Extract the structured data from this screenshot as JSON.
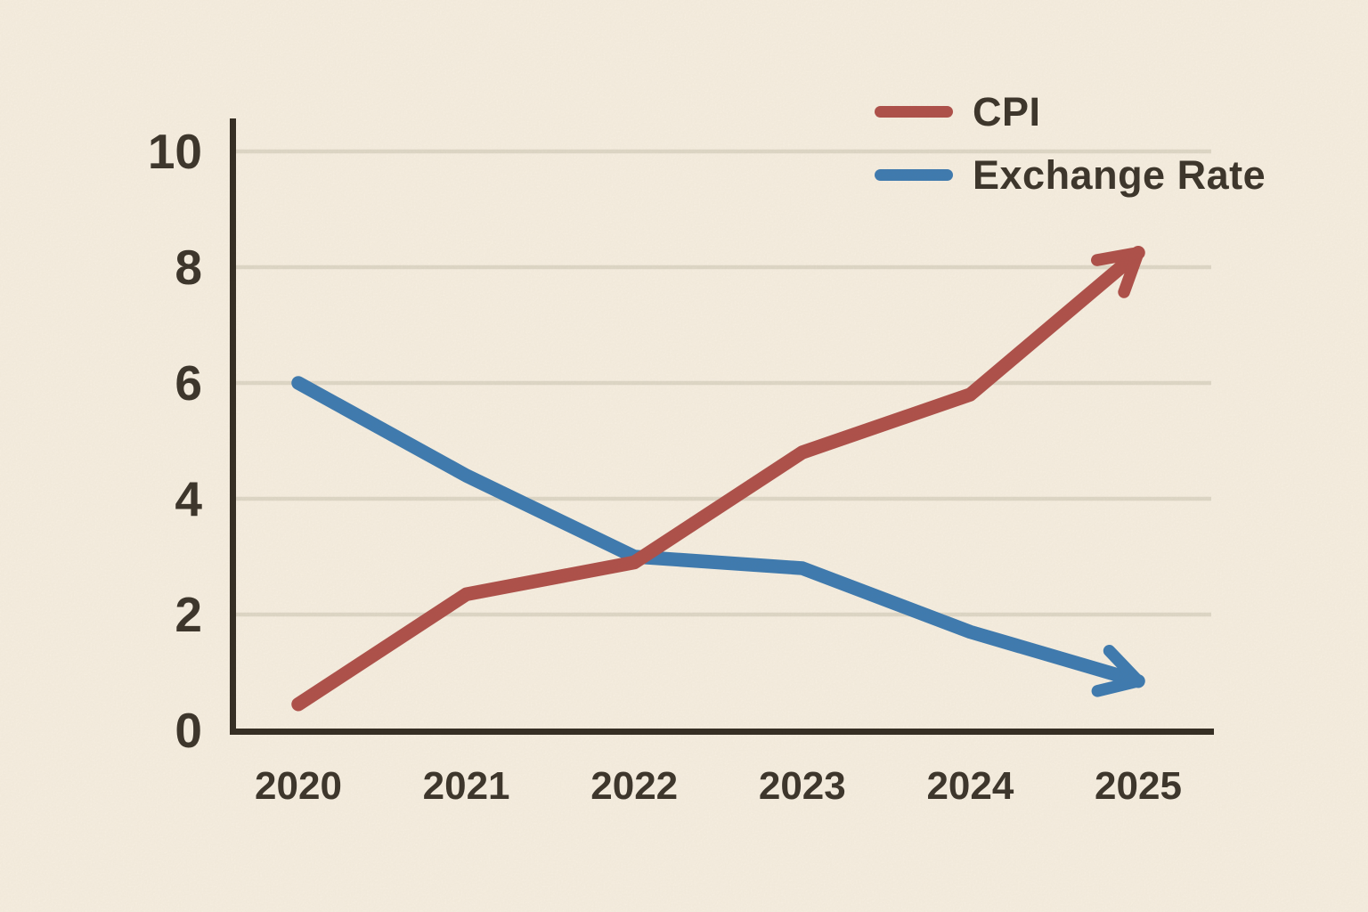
{
  "chart_data": {
    "type": "line",
    "title": "",
    "xlabel": "",
    "ylabel": "",
    "categories": [
      "2020",
      "2021",
      "2022",
      "2023",
      "2024",
      "2025"
    ],
    "series": [
      {
        "name": "CPI",
        "color": "#b0504a",
        "values": [
          0.45,
          2.35,
          2.9,
          4.8,
          5.8,
          8.25
        ],
        "arrow_end": true
      },
      {
        "name": "Exchange Rate",
        "color": "#3d7bb2",
        "values": [
          6.0,
          4.4,
          3.0,
          2.8,
          1.7,
          0.85
        ],
        "arrow_end": true
      }
    ],
    "ylim": [
      0,
      10
    ],
    "y_ticks": [
      0,
      2,
      4,
      6,
      8,
      10
    ],
    "grid": "horizontal-only",
    "legend_position": "top-right"
  },
  "style": {
    "background": "#f9f1e3",
    "axis_color": "#33two"
  }
}
